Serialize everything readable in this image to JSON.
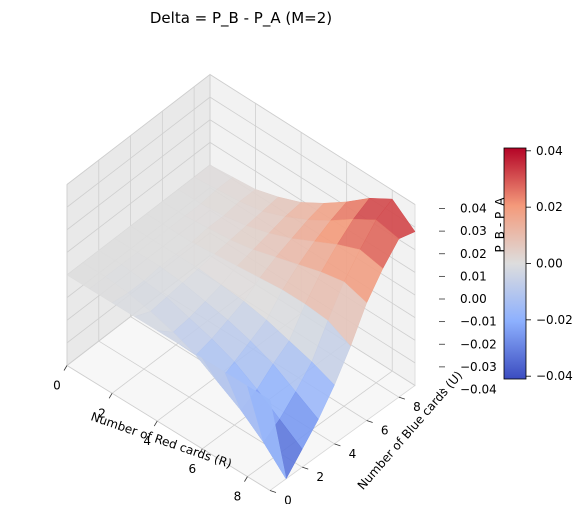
{
  "chart_data": {
    "type": "surface",
    "title": "Delta = P_B - P_A (M=2)",
    "xlabel": "Number of Red cards (R)",
    "ylabel": "Number of Blue cards (U)",
    "zlabel": "P_B - P_A",
    "x_ticks": [
      "0",
      "2",
      "4",
      "6",
      "8"
    ],
    "y_ticks": [
      "0",
      "2",
      "4",
      "6",
      "8"
    ],
    "z_ticks": [
      "0.04",
      "0.03",
      "0.02",
      "0.01",
      "0.00",
      "−0.01",
      "−0.02",
      "−0.03",
      "−0.04"
    ],
    "xlim": [
      0,
      9
    ],
    "ylim": [
      0,
      9
    ],
    "zlim": [
      -0.04,
      0.04
    ],
    "colormap": "coolwarm",
    "colorbar": {
      "ticks": [
        "0.04",
        "0.02",
        "0.00",
        "−0.02",
        "−0.04"
      ],
      "range": [
        -0.041,
        0.041
      ]
    },
    "grid": true,
    "surface_rows_description": "z values indexed [U][R] for R,U in 0..9",
    "z": [
      [
        0.0,
        0.0,
        0.0,
        0.0,
        0.0,
        0.0,
        0.0,
        0.0,
        0.0,
        0.0
      ],
      [
        0.0,
        0.0,
        -0.001,
        -0.003,
        -0.006,
        -0.01,
        -0.016,
        -0.022,
        -0.03,
        -0.04
      ],
      [
        0.0,
        0.0,
        -0.001,
        -0.002,
        -0.005,
        -0.008,
        -0.012,
        -0.018,
        -0.025,
        -0.032
      ],
      [
        0.0,
        0.0,
        0.0,
        -0.001,
        -0.003,
        -0.005,
        -0.008,
        -0.012,
        -0.018,
        -0.024
      ],
      [
        0.0,
        0.0,
        0.0,
        0.0,
        -0.001,
        -0.002,
        -0.004,
        -0.007,
        -0.01,
        -0.014
      ],
      [
        0.0,
        0.0,
        0.0,
        0.001,
        0.002,
        0.003,
        0.004,
        0.004,
        0.003,
        -0.002
      ],
      [
        0.0,
        0.0,
        0.001,
        0.002,
        0.004,
        0.007,
        0.01,
        0.013,
        0.015,
        0.012
      ],
      [
        0.0,
        0.0,
        0.001,
        0.003,
        0.006,
        0.01,
        0.015,
        0.02,
        0.024,
        0.022
      ],
      [
        0.0,
        0.001,
        0.002,
        0.004,
        0.008,
        0.013,
        0.019,
        0.026,
        0.032,
        0.03
      ],
      [
        0.0,
        0.001,
        0.002,
        0.005,
        0.009,
        0.015,
        0.022,
        0.03,
        0.036,
        0.028
      ]
    ]
  }
}
